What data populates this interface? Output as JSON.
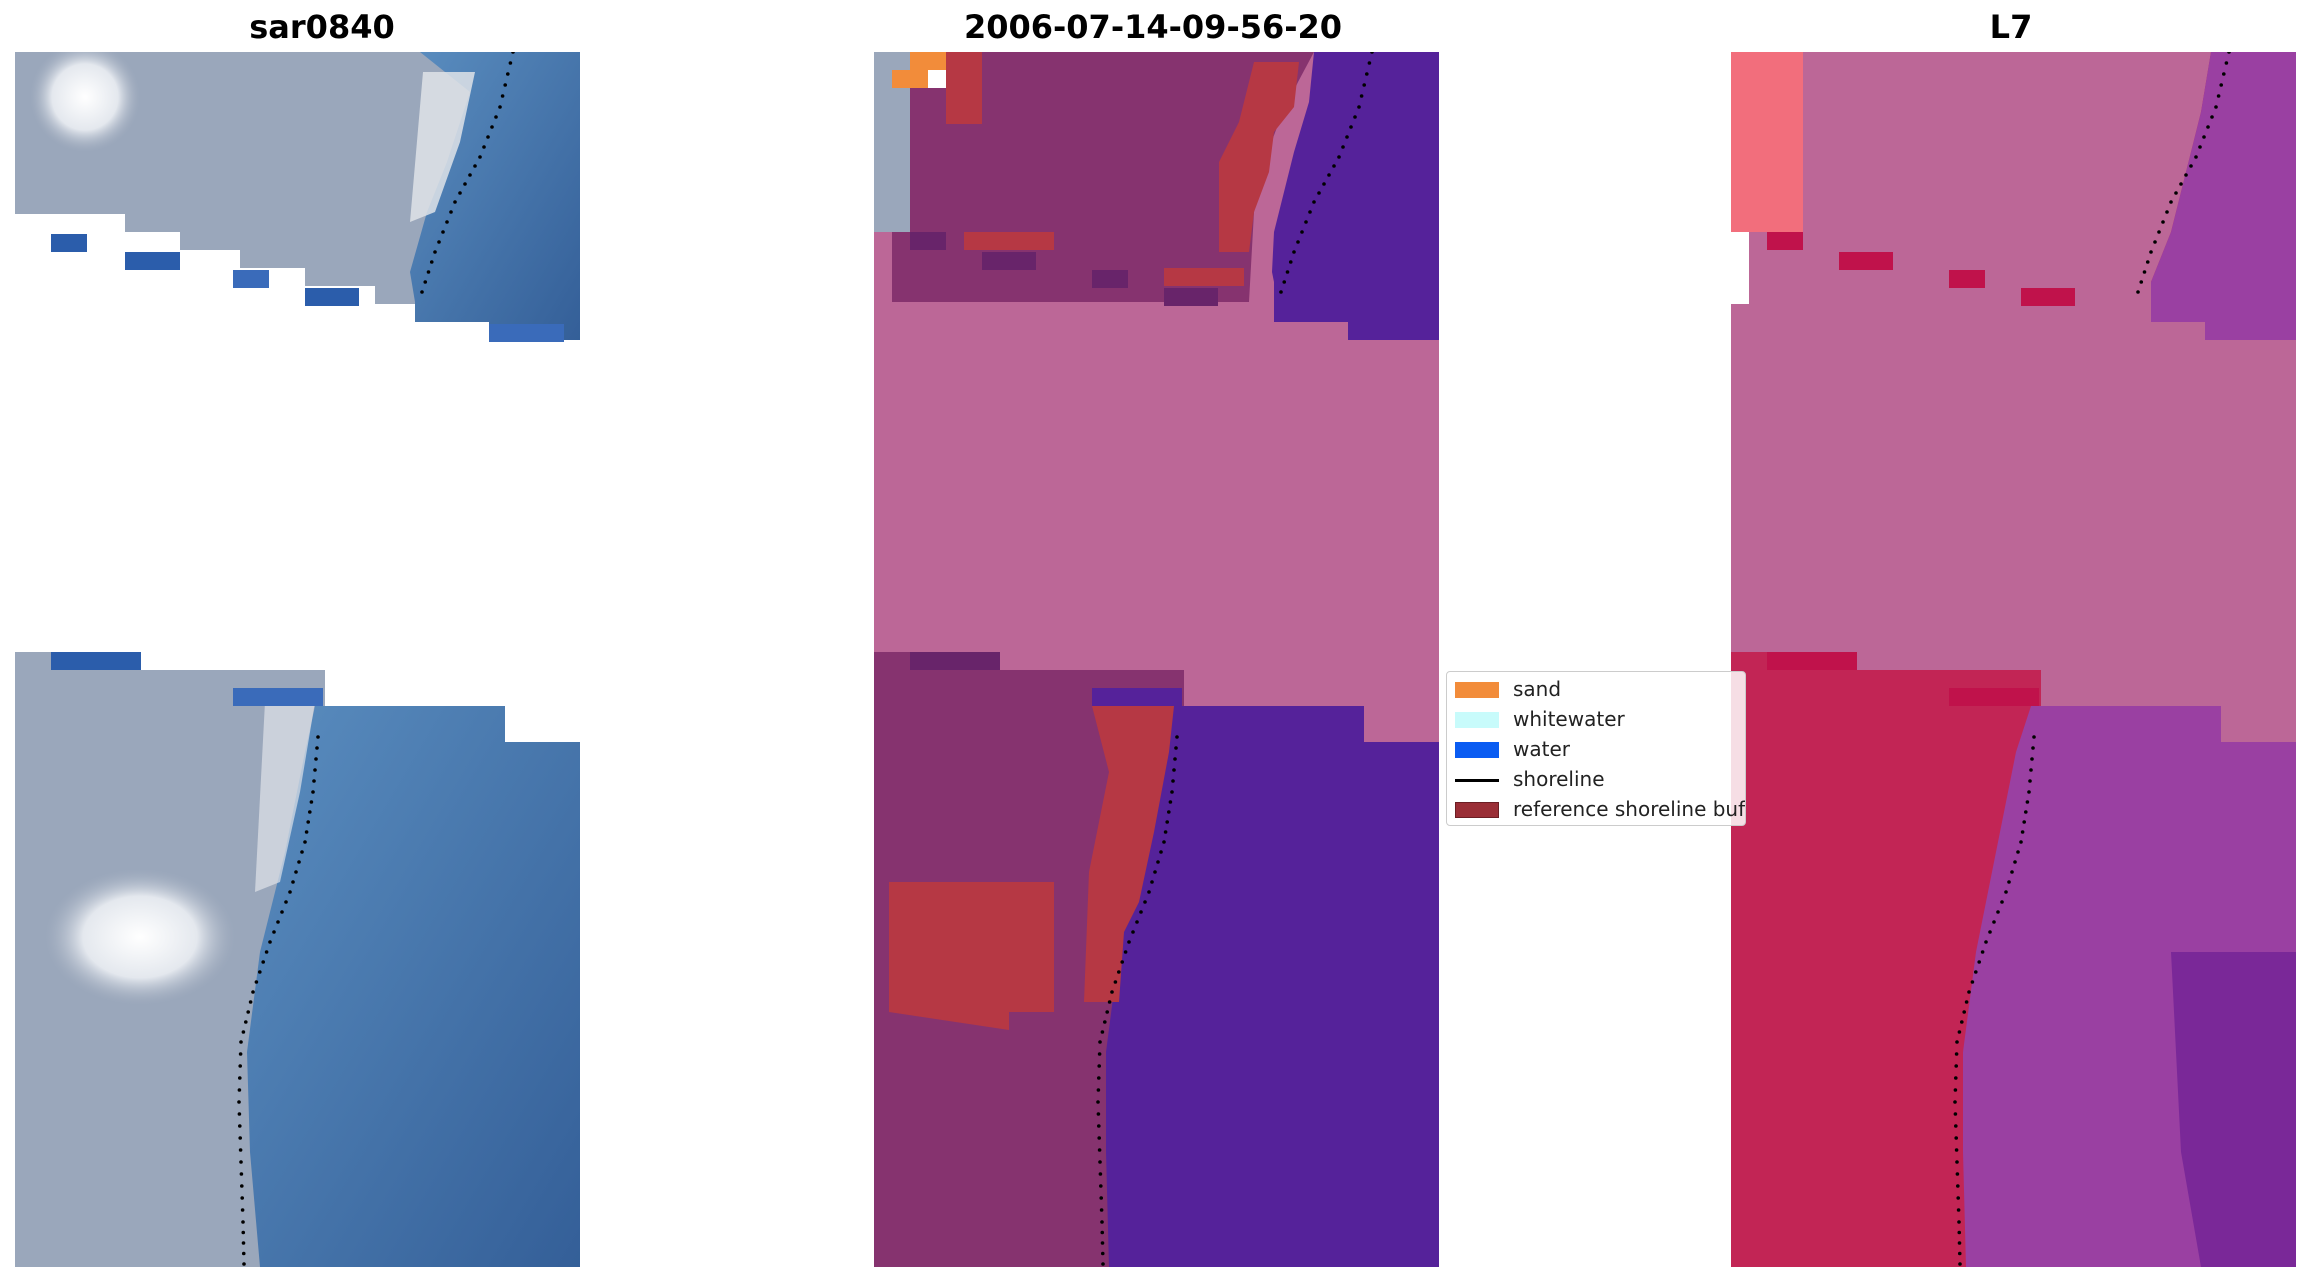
{
  "panels": [
    {
      "title": "sar0840"
    },
    {
      "title": "2006-07-14-09-56-20"
    },
    {
      "title": "L7"
    }
  ],
  "legend": {
    "items": [
      {
        "label": "sand",
        "color": "#f28c3a",
        "kind": "patch"
      },
      {
        "label": "whitewater",
        "color": "#c8fbfb",
        "kind": "patch"
      },
      {
        "label": "water",
        "color": "#0a5cf2",
        "kind": "patch"
      },
      {
        "label": "shoreline",
        "color": "#000000",
        "kind": "line"
      },
      {
        "label": "reference shoreline buffer",
        "color": "#9a2e36",
        "kind": "patch"
      }
    ]
  },
  "colors": {
    "cloud_mask": "#bc6797",
    "rgb_land": "#97a4b8",
    "rgb_sea": "#4b7fb4",
    "class_land": "#86336f",
    "class_water": "#55229a",
    "class_buffer": "#b63844",
    "index_land": "#c22555",
    "index_water": "#9a40a2"
  }
}
